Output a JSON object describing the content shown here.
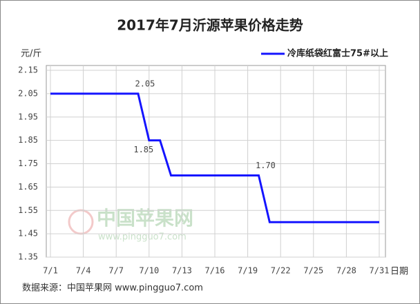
{
  "chart_data": {
    "type": "line",
    "title": "2017年7月沂源苹果价格走势",
    "y_unit": "元/斤",
    "x_unit": "日期",
    "source": "数据来源：中国苹果网 www.pingguo7.com",
    "watermark": [
      "中国苹果网",
      "www.pingguo7.com"
    ],
    "categories": [
      "7/1",
      null,
      null,
      "7/4",
      null,
      null,
      "7/7",
      null,
      null,
      "7/10",
      null,
      null,
      "7/13",
      null,
      null,
      "7/16",
      null,
      null,
      "7/19",
      null,
      null,
      "7/22",
      null,
      null,
      "7/25",
      null,
      null,
      "7/28",
      null,
      null,
      "7/31"
    ],
    "series": [
      {
        "name": "冷库纸袋红富士75#以上",
        "color": "#1414ff",
        "values": [
          2.05,
          2.05,
          2.05,
          2.05,
          2.05,
          2.05,
          2.05,
          2.05,
          2.05,
          1.85,
          1.85,
          1.7,
          1.7,
          1.7,
          1.7,
          1.7,
          1.7,
          1.7,
          1.7,
          1.7,
          1.5,
          1.5,
          1.5,
          1.5,
          1.5,
          1.5,
          1.5,
          1.5,
          1.5,
          1.5,
          1.5
        ],
        "value_labels": [
          null,
          null,
          null,
          null,
          null,
          null,
          null,
          null,
          "2.05",
          "1.85",
          null,
          null,
          null,
          null,
          null,
          null,
          null,
          null,
          null,
          "1.70",
          null,
          null,
          null,
          null,
          null,
          null,
          null,
          null,
          null,
          null,
          null
        ]
      }
    ],
    "ylim": [
      1.35,
      2.15
    ],
    "yticks": [
      1.35,
      1.45,
      1.55,
      1.65,
      1.75,
      1.85,
      1.95,
      2.05,
      2.15
    ],
    "grid": true,
    "legend": "top-right"
  }
}
